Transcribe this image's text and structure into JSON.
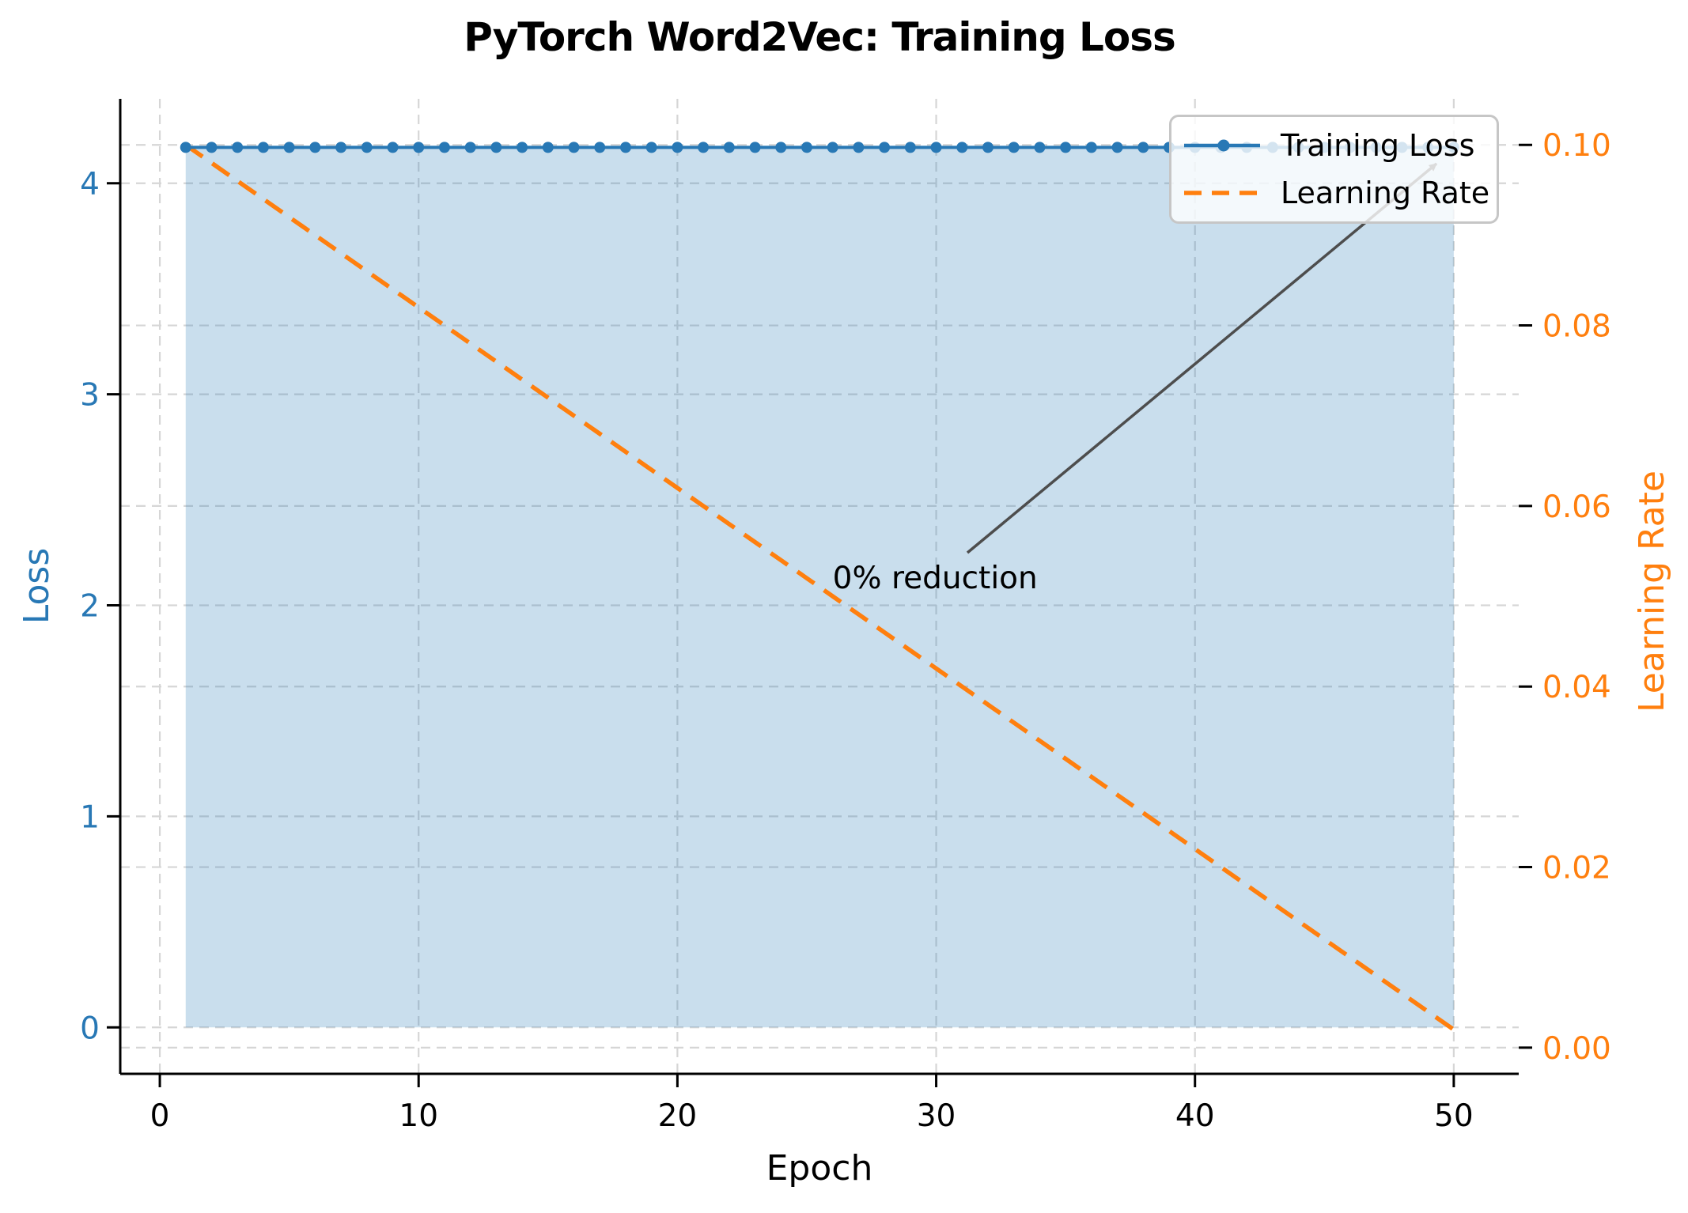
{
  "colors": {
    "blue": "#2878b5",
    "orange": "#ff7f0e",
    "fill": "rgba(31,119,180,0.24)",
    "grid": "#d6d6d6",
    "spine": "#000000",
    "tick_label_x": "#000000",
    "annotation_line": "#4d4d4d",
    "legend_border": "#c6c6c6",
    "legend_bg": "rgba(255,255,255,0.8)"
  },
  "chart_data": {
    "type": "line",
    "title": "PyTorch Word2Vec: Training Loss",
    "xlabel": "Epoch",
    "ylabel_left": "Loss",
    "ylabel_right": "Learning Rate",
    "x": [
      1,
      2,
      3,
      4,
      5,
      6,
      7,
      8,
      9,
      10,
      11,
      12,
      13,
      14,
      15,
      16,
      17,
      18,
      19,
      20,
      21,
      22,
      23,
      24,
      25,
      26,
      27,
      28,
      29,
      30,
      31,
      32,
      33,
      34,
      35,
      36,
      37,
      38,
      39,
      40,
      41,
      42,
      43,
      44,
      45,
      46,
      47,
      48,
      49,
      50
    ],
    "series": [
      {
        "name": "Training Loss",
        "axis": "left",
        "color": "#2878b5",
        "style": "solid-marker",
        "values": [
          4.17,
          4.17,
          4.17,
          4.17,
          4.17,
          4.17,
          4.17,
          4.17,
          4.17,
          4.17,
          4.17,
          4.17,
          4.17,
          4.17,
          4.17,
          4.17,
          4.17,
          4.17,
          4.17,
          4.17,
          4.17,
          4.17,
          4.17,
          4.17,
          4.17,
          4.17,
          4.17,
          4.17,
          4.17,
          4.17,
          4.17,
          4.17,
          4.17,
          4.17,
          4.17,
          4.17,
          4.17,
          4.17,
          4.17,
          4.17,
          4.17,
          4.17,
          4.17,
          4.17,
          4.17,
          4.17,
          4.17,
          4.17,
          4.17,
          4.17
        ]
      },
      {
        "name": "Learning Rate",
        "axis": "right",
        "color": "#ff7f0e",
        "style": "dashed",
        "values": [
          0.1,
          0.098,
          0.096,
          0.094,
          0.092,
          0.09,
          0.088,
          0.086,
          0.084,
          0.082,
          0.08,
          0.078,
          0.076,
          0.074,
          0.072,
          0.07,
          0.068,
          0.066,
          0.064,
          0.062,
          0.06,
          0.058,
          0.056,
          0.054,
          0.052,
          0.05,
          0.048,
          0.046,
          0.044,
          0.042,
          0.04,
          0.038,
          0.036,
          0.034,
          0.032,
          0.03,
          0.028,
          0.026,
          0.024,
          0.022,
          0.02,
          0.018,
          0.016,
          0.014,
          0.012,
          0.01,
          0.008,
          0.006,
          0.004,
          0.002
        ]
      }
    ],
    "x_ticks": [
      0,
      10,
      20,
      30,
      40,
      50
    ],
    "y_left_ticks": [
      0,
      1,
      2,
      3,
      4
    ],
    "y_right_ticks": [
      "0.00",
      "0.02",
      "0.04",
      "0.06",
      "0.08",
      "0.10"
    ],
    "xlim": [
      -1.53,
      52.51
    ],
    "ylim_left": [
      -0.22,
      4.4
    ],
    "ylim_right": [
      -0.0029,
      0.1051
    ],
    "grid": true,
    "legend_position": "upper right",
    "fill_under_loss": true,
    "annotations": [
      {
        "text": "0% reduction",
        "xy": [
          50,
          4.17
        ],
        "xytext": [
          26,
          2.07
        ]
      }
    ]
  }
}
